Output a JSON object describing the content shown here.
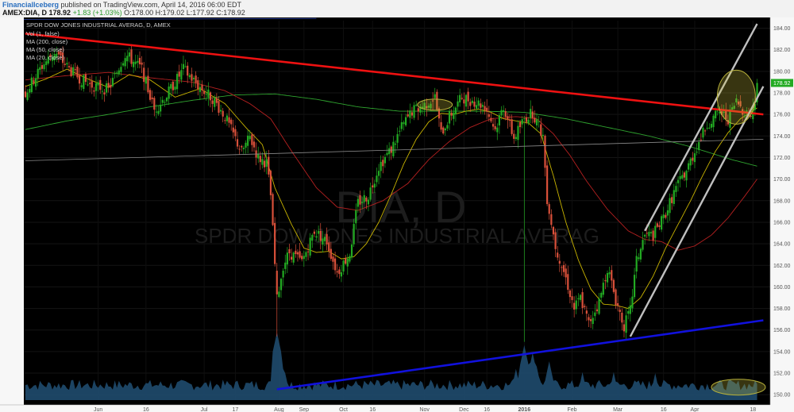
{
  "header": {
    "user": "FinancialIceberg",
    "published": "published on TradingView.com, April 14, 2016 06:00 EDT",
    "symbol": "AMEX:DIA, D",
    "last": "178.92",
    "change": "+1.83 (+1.03%)",
    "o": "O:178.00",
    "h": "H:179.02",
    "l": "L:177.92",
    "c": "C:178.92"
  },
  "legend": {
    "title": "SPDR DOW JONES INDUSTRIAL AVERAG, D, AMEX",
    "vol": "Vol (1, false)",
    "ma200": "MA (200, close)",
    "ma50": "MA (50, close)",
    "ma20": "MA (20, close)"
  },
  "watermark": {
    "big": "DIA, D",
    "small": "SPDR DOW JONES INDUSTRIAL AVERAG"
  },
  "price_tag": "178.92",
  "colors": {
    "up": "#22aa22",
    "down": "#d9503a",
    "ma20": "#c9b400",
    "ma50": "#b52020",
    "ma200": "#2fa32f",
    "volume": "#1f4b6e",
    "resistance": "#ee1111",
    "support": "#1111dd",
    "channel": "#c0c0c0"
  },
  "chart_data": {
    "type": "candlestick",
    "title": "SPDR DOW JONES INDUSTRIAL AVERAG, D, AMEX",
    "y_ticks": [
      "184.00",
      "182.00",
      "180.00",
      "178.00",
      "176.00",
      "174.00",
      "172.00",
      "170.00",
      "168.00",
      "166.00",
      "164.00",
      "162.00",
      "160.00",
      "158.00",
      "156.00",
      "154.00",
      "152.00",
      "150.00"
    ],
    "ylim": [
      149.5,
      184.7
    ],
    "x_ticks": [
      "Jun",
      "16",
      "Jul",
      "17",
      "Aug",
      "Sep",
      "Oct",
      "16",
      "Nov",
      "Dec",
      "16",
      "2016",
      "Feb",
      "Mar",
      "16",
      "Apr",
      "18"
    ],
    "x_tick_days": [
      8,
      35,
      58,
      86,
      101,
      122,
      134,
      153,
      167,
      192,
      211,
      222,
      240,
      263,
      285,
      307,
      338,
      350,
      371
    ],
    "x_tick_index": [
      0,
      4,
      5,
      6,
      7,
      8,
      9,
      10,
      11,
      12,
      13,
      14,
      15,
      16,
      17,
      18,
      19,
      20
    ],
    "x_tick_day_list": [
      35,
      58,
      86,
      101,
      122,
      134,
      153,
      167,
      192,
      211,
      222,
      240,
      263,
      285,
      307,
      322,
      350
    ],
    "anchors": [
      [
        0,
        178.0
      ],
      [
        8,
        180.5
      ],
      [
        14,
        181.8
      ],
      [
        22,
        180.0
      ],
      [
        30,
        178.8
      ],
      [
        40,
        178.3
      ],
      [
        48,
        181.6
      ],
      [
        56,
        180.2
      ],
      [
        62,
        176.4
      ],
      [
        68,
        177.8
      ],
      [
        76,
        180.2
      ],
      [
        84,
        178.5
      ],
      [
        90,
        177.5
      ],
      [
        96,
        175.8
      ],
      [
        104,
        172.5
      ],
      [
        108,
        173.9
      ],
      [
        112,
        172.0
      ],
      [
        116,
        171.5
      ],
      [
        118,
        168.5
      ],
      [
        121,
        158.8
      ],
      [
        124,
        162.0
      ],
      [
        127,
        163.2
      ],
      [
        133,
        162.3
      ],
      [
        139,
        165.2
      ],
      [
        145,
        164.2
      ],
      [
        150,
        161.3
      ],
      [
        156,
        163.1
      ],
      [
        160,
        167.8
      ],
      [
        165,
        168.5
      ],
      [
        170,
        171.2
      ],
      [
        176,
        172.8
      ],
      [
        181,
        174.8
      ],
      [
        186,
        176.3
      ],
      [
        192,
        176.9
      ],
      [
        197,
        177.6
      ],
      [
        200,
        174.2
      ],
      [
        204,
        175.8
      ],
      [
        210,
        177.6
      ],
      [
        216,
        177.2
      ],
      [
        221,
        176.8
      ],
      [
        226,
        174.6
      ],
      [
        230,
        176.8
      ],
      [
        235,
        173.8
      ],
      [
        240,
        175.6
      ],
      [
        244,
        176.2
      ],
      [
        249,
        174.0
      ],
      [
        251,
        168.2
      ],
      [
        255,
        163.8
      ],
      [
        260,
        160.8
      ],
      [
        264,
        158.0
      ],
      [
        267,
        159.0
      ],
      [
        271,
        156.6
      ],
      [
        276,
        158.6
      ],
      [
        280,
        161.8
      ],
      [
        284,
        158.8
      ],
      [
        288,
        156.4
      ],
      [
        291,
        157.8
      ],
      [
        294,
        162.4
      ],
      [
        298,
        164.8
      ],
      [
        302,
        164.8
      ],
      [
        307,
        166.4
      ],
      [
        313,
        169.2
      ],
      [
        318,
        170.8
      ],
      [
        323,
        173.0
      ],
      [
        328,
        175.1
      ],
      [
        334,
        176.2
      ],
      [
        338,
        175.6
      ],
      [
        342,
        177.2
      ],
      [
        346,
        176.3
      ],
      [
        349,
        175.9
      ],
      [
        351,
        177.1
      ],
      [
        352,
        178.9
      ]
    ],
    "volume_profile": {
      "base_low": 150.4,
      "base_high": 151.4,
      "spikes": [
        [
          121,
          155.8
        ],
        [
          122,
          154.2
        ],
        [
          123,
          153.2
        ],
        [
          125,
          152.0
        ],
        [
          236,
          152.4
        ],
        [
          240,
          154.6
        ],
        [
          244,
          153.9
        ],
        [
          246,
          152.6
        ],
        [
          252,
          153.1
        ],
        [
          268,
          152.1
        ],
        [
          283,
          152.1
        ],
        [
          303,
          152.0
        ]
      ]
    },
    "ma20_anchors": [
      [
        0,
        178.6
      ],
      [
        10,
        179.3
      ],
      [
        20,
        180.2
      ],
      [
        30,
        179.3
      ],
      [
        40,
        178.5
      ],
      [
        50,
        179.7
      ],
      [
        60,
        179.2
      ],
      [
        72,
        177.6
      ],
      [
        84,
        178.4
      ],
      [
        96,
        177.0
      ],
      [
        106,
        174.8
      ],
      [
        114,
        173.2
      ],
      [
        120,
        169.2
      ],
      [
        128,
        165.8
      ],
      [
        134,
        163.6
      ],
      [
        140,
        163.2
      ],
      [
        146,
        163.3
      ],
      [
        152,
        162.6
      ],
      [
        158,
        162.8
      ],
      [
        164,
        164.0
      ],
      [
        170,
        166.0
      ],
      [
        176,
        168.6
      ],
      [
        182,
        171.4
      ],
      [
        188,
        173.7
      ],
      [
        194,
        175.3
      ],
      [
        200,
        176.1
      ],
      [
        206,
        176.0
      ],
      [
        212,
        176.3
      ],
      [
        218,
        176.5
      ],
      [
        224,
        176.2
      ],
      [
        230,
        175.6
      ],
      [
        236,
        175.4
      ],
      [
        242,
        175.2
      ],
      [
        248,
        174.2
      ],
      [
        254,
        170.3
      ],
      [
        260,
        166.0
      ],
      [
        266,
        162.5
      ],
      [
        272,
        159.8
      ],
      [
        278,
        158.4
      ],
      [
        284,
        158.3
      ],
      [
        290,
        158.0
      ],
      [
        296,
        159.0
      ],
      [
        302,
        161.0
      ],
      [
        308,
        163.6
      ],
      [
        314,
        165.8
      ],
      [
        320,
        168.0
      ],
      [
        326,
        170.4
      ],
      [
        332,
        172.6
      ],
      [
        338,
        174.3
      ],
      [
        344,
        175.6
      ],
      [
        352,
        176.6
      ]
    ],
    "ma50_anchors": [
      [
        0,
        179.2
      ],
      [
        20,
        179.6
      ],
      [
        40,
        179.9
      ],
      [
        60,
        179.4
      ],
      [
        80,
        179.0
      ],
      [
        96,
        178.2
      ],
      [
        108,
        177.0
      ],
      [
        118,
        175.6
      ],
      [
        128,
        172.6
      ],
      [
        140,
        169.2
      ],
      [
        150,
        167.4
      ],
      [
        160,
        167.1
      ],
      [
        172,
        168.0
      ],
      [
        184,
        169.6
      ],
      [
        194,
        171.8
      ],
      [
        204,
        173.5
      ],
      [
        214,
        174.8
      ],
      [
        224,
        175.6
      ],
      [
        236,
        175.8
      ],
      [
        246,
        175.6
      ],
      [
        254,
        174.2
      ],
      [
        262,
        172.2
      ],
      [
        270,
        169.8
      ],
      [
        280,
        167.2
      ],
      [
        290,
        165.2
      ],
      [
        298,
        164.4
      ],
      [
        306,
        164.2
      ],
      [
        314,
        163.4
      ],
      [
        322,
        163.8
      ],
      [
        330,
        164.8
      ],
      [
        338,
        166.4
      ],
      [
        346,
        168.4
      ],
      [
        352,
        170.0
      ]
    ],
    "ma200_anchors": [
      [
        0,
        174.6
      ],
      [
        20,
        175.4
      ],
      [
        40,
        176.0
      ],
      [
        60,
        176.7
      ],
      [
        80,
        177.3
      ],
      [
        100,
        177.8
      ],
      [
        120,
        177.9
      ],
      [
        140,
        177.4
      ],
      [
        160,
        176.7
      ],
      [
        180,
        176.3
      ],
      [
        200,
        176.3
      ],
      [
        220,
        176.3
      ],
      [
        240,
        176.2
      ],
      [
        260,
        175.6
      ],
      [
        280,
        174.8
      ],
      [
        300,
        174.0
      ],
      [
        320,
        173.0
      ],
      [
        340,
        171.8
      ],
      [
        352,
        171.2
      ]
    ],
    "trendlines": {
      "resistance": [
        [
          0,
          183.5
        ],
        [
          355,
          176.0
        ]
      ],
      "support": [
        [
          121,
          150.5
        ],
        [
          355,
          156.9
        ]
      ],
      "long_gray": [
        [
          0,
          171.7
        ],
        [
          355,
          173.7
        ]
      ],
      "channel_upper": [
        [
          298,
          165.2
        ],
        [
          352,
          184.4
        ]
      ],
      "channel_lower": [
        [
          291,
          155.4
        ],
        [
          355,
          178.6
        ]
      ]
    },
    "highlights": [
      [
        197,
        176.9
      ],
      [
        342,
        177.6
      ],
      [
        343,
        150.7
      ]
    ]
  }
}
